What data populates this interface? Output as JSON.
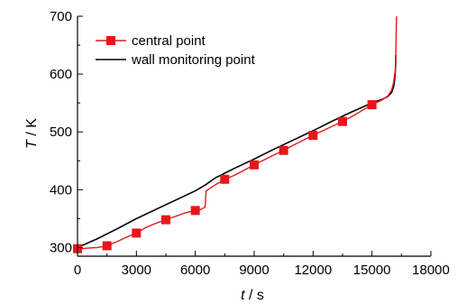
{
  "chart_data": {
    "type": "line",
    "xlabel_symbol": "t",
    "xlabel_unit": " / s",
    "ylabel_symbol": "T",
    "ylabel_unit": " / K",
    "xlim": [
      0,
      18000
    ],
    "ylim": [
      285,
      700
    ],
    "x_ticks": [
      0,
      3000,
      6000,
      9000,
      12000,
      15000,
      18000
    ],
    "y_ticks": [
      300,
      400,
      500,
      600,
      700
    ],
    "grid": false,
    "legend_position": "top-left",
    "series": [
      {
        "name": "central point",
        "color": "#e8161b",
        "marker": "square",
        "x": [
          0,
          200,
          500,
          1000,
          1500,
          2000,
          2500,
          3000,
          3500,
          4000,
          4500,
          5000,
          5500,
          6000,
          6300,
          6500,
          6550,
          7000,
          7500,
          8000,
          9000,
          10000,
          10500,
          11000,
          12000,
          13000,
          13500,
          14000,
          15000,
          15500,
          15800,
          16000,
          16100,
          16200,
          16250
        ],
        "y": [
          298,
          298,
          299,
          300,
          303,
          310,
          318,
          325,
          335,
          342,
          348,
          354,
          360,
          364,
          366,
          370,
          398,
          408,
          418,
          425,
          443,
          460,
          468,
          477,
          494,
          510,
          518,
          527,
          547,
          555,
          562,
          572,
          585,
          610,
          700
        ]
      },
      {
        "name": "wall monitoring point",
        "color": "#000000",
        "x": [
          0,
          1000,
          2000,
          3000,
          4000,
          5000,
          6000,
          6500,
          7000,
          8000,
          9000,
          10000,
          11000,
          12000,
          13000,
          14000,
          15000,
          15500,
          15800,
          16000,
          16100,
          16150,
          16200,
          16220
        ],
        "y": [
          300,
          315,
          332,
          350,
          366,
          382,
          398,
          408,
          420,
          437,
          453,
          470,
          486,
          502,
          519,
          535,
          550,
          556,
          561,
          568,
          578,
          588,
          610,
          633
        ]
      }
    ],
    "markers_x": [
      0,
      1500,
      3000,
      4500,
      6000,
      7500,
      9000,
      10500,
      12000,
      13500,
      15000
    ]
  }
}
